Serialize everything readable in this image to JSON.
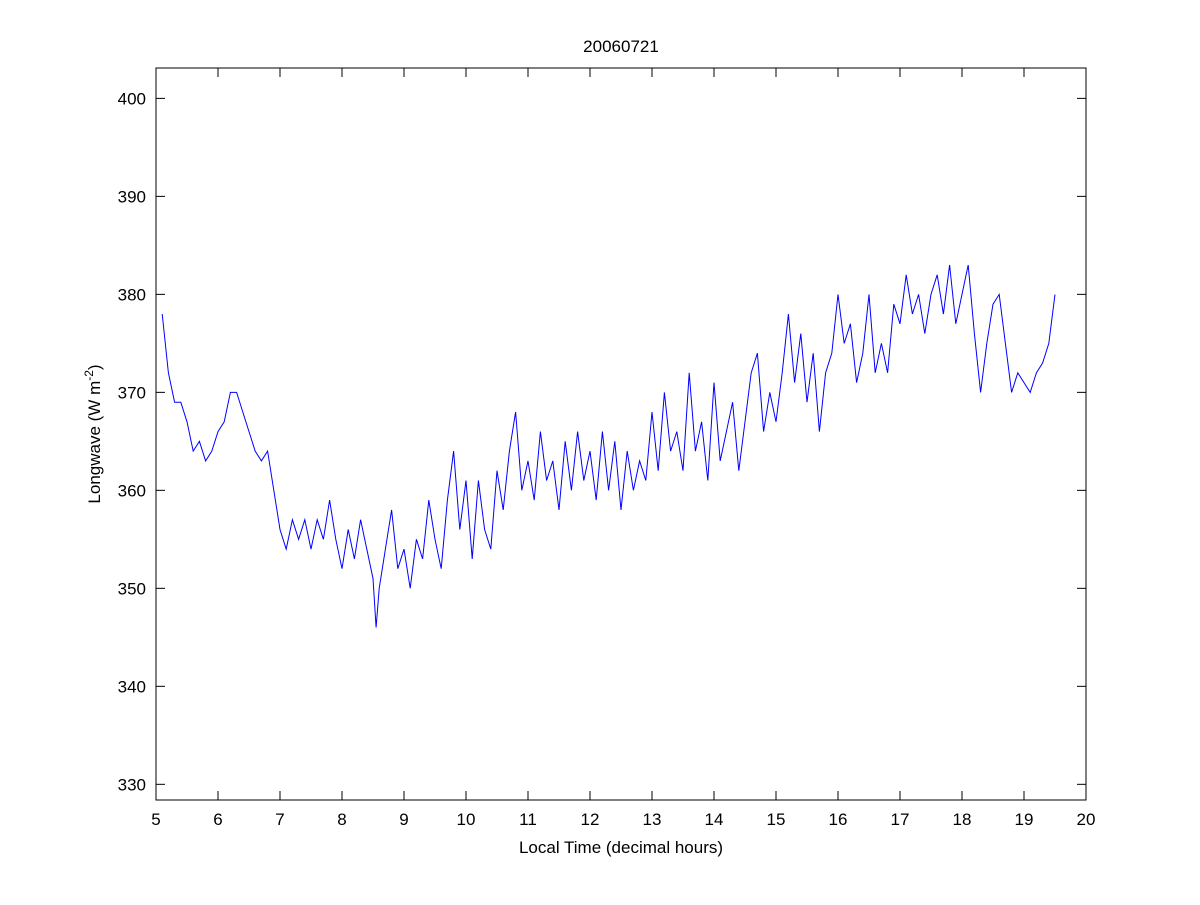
{
  "chart_data": {
    "type": "line",
    "title": "20060721",
    "xlabel": "Local Time (decimal hours)",
    "ylabel": "Longwave (W m^-2)",
    "ylabel_parts": {
      "main": "Longwave (W m",
      "sup": "-2",
      "end": ")"
    },
    "xlim": [
      5,
      20
    ],
    "ylim": [
      328.4,
      403.1
    ],
    "xticks": [
      5,
      6,
      7,
      8,
      9,
      10,
      11,
      12,
      13,
      14,
      15,
      16,
      17,
      18,
      19,
      20
    ],
    "yticks": [
      330,
      340,
      350,
      360,
      370,
      380,
      390,
      400
    ],
    "grid": false,
    "line_color": "#0000ff",
    "series": [
      {
        "name": "Longwave",
        "x": [
          5.1,
          5.2,
          5.3,
          5.4,
          5.5,
          5.6,
          5.7,
          5.8,
          5.9,
          6.0,
          6.1,
          6.2,
          6.3,
          6.4,
          6.5,
          6.6,
          6.7,
          6.8,
          6.9,
          7.0,
          7.1,
          7.2,
          7.3,
          7.4,
          7.5,
          7.6,
          7.7,
          7.8,
          7.9,
          8.0,
          8.1,
          8.2,
          8.3,
          8.4,
          8.5,
          8.55,
          8.6,
          8.7,
          8.8,
          8.9,
          9.0,
          9.1,
          9.2,
          9.3,
          9.4,
          9.5,
          9.6,
          9.7,
          9.8,
          9.9,
          10.0,
          10.1,
          10.2,
          10.3,
          10.4,
          10.5,
          10.6,
          10.7,
          10.8,
          10.9,
          11.0,
          11.1,
          11.2,
          11.3,
          11.4,
          11.5,
          11.6,
          11.7,
          11.8,
          11.9,
          12.0,
          12.1,
          12.2,
          12.3,
          12.4,
          12.5,
          12.6,
          12.7,
          12.8,
          12.9,
          13.0,
          13.1,
          13.2,
          13.3,
          13.4,
          13.5,
          13.6,
          13.7,
          13.8,
          13.9,
          14.0,
          14.1,
          14.2,
          14.3,
          14.4,
          14.5,
          14.6,
          14.7,
          14.8,
          14.9,
          15.0,
          15.1,
          15.2,
          15.3,
          15.4,
          15.5,
          15.6,
          15.7,
          15.8,
          15.9,
          16.0,
          16.1,
          16.2,
          16.3,
          16.4,
          16.5,
          16.6,
          16.7,
          16.8,
          16.9,
          17.0,
          17.1,
          17.2,
          17.3,
          17.4,
          17.5,
          17.6,
          17.7,
          17.8,
          17.9,
          18.0,
          18.1,
          18.2,
          18.3,
          18.4,
          18.5,
          18.6,
          18.7,
          18.8,
          18.9,
          19.0,
          19.1,
          19.2,
          19.3,
          19.4,
          19.5
        ],
        "y": [
          378,
          372,
          369,
          369,
          367,
          364,
          365,
          363,
          364,
          366,
          367,
          370,
          370,
          368,
          366,
          364,
          363,
          364,
          360,
          356,
          354,
          357,
          355,
          357,
          354,
          357,
          355,
          359,
          355,
          352,
          356,
          353,
          357,
          354,
          351,
          346,
          350,
          354,
          358,
          352,
          354,
          350,
          355,
          353,
          359,
          355,
          352,
          359,
          364,
          356,
          361,
          353,
          361,
          356,
          354,
          362,
          358,
          364,
          368,
          360,
          363,
          359,
          366,
          361,
          363,
          358,
          365,
          360,
          366,
          361,
          364,
          359,
          366,
          360,
          365,
          358,
          364,
          360,
          363,
          361,
          368,
          362,
          370,
          364,
          366,
          362,
          372,
          364,
          367,
          361,
          371,
          363,
          366,
          369,
          362,
          367,
          372,
          374,
          366,
          370,
          367,
          372,
          378,
          371,
          376,
          369,
          374,
          366,
          372,
          374,
          380,
          375,
          377,
          371,
          374,
          380,
          372,
          375,
          372,
          379,
          377,
          382,
          378,
          380,
          376,
          380,
          382,
          378,
          383,
          377,
          380,
          383,
          376,
          370,
          375,
          379,
          380,
          375,
          370,
          372,
          371,
          370,
          372,
          373,
          375,
          380
        ]
      }
    ]
  }
}
